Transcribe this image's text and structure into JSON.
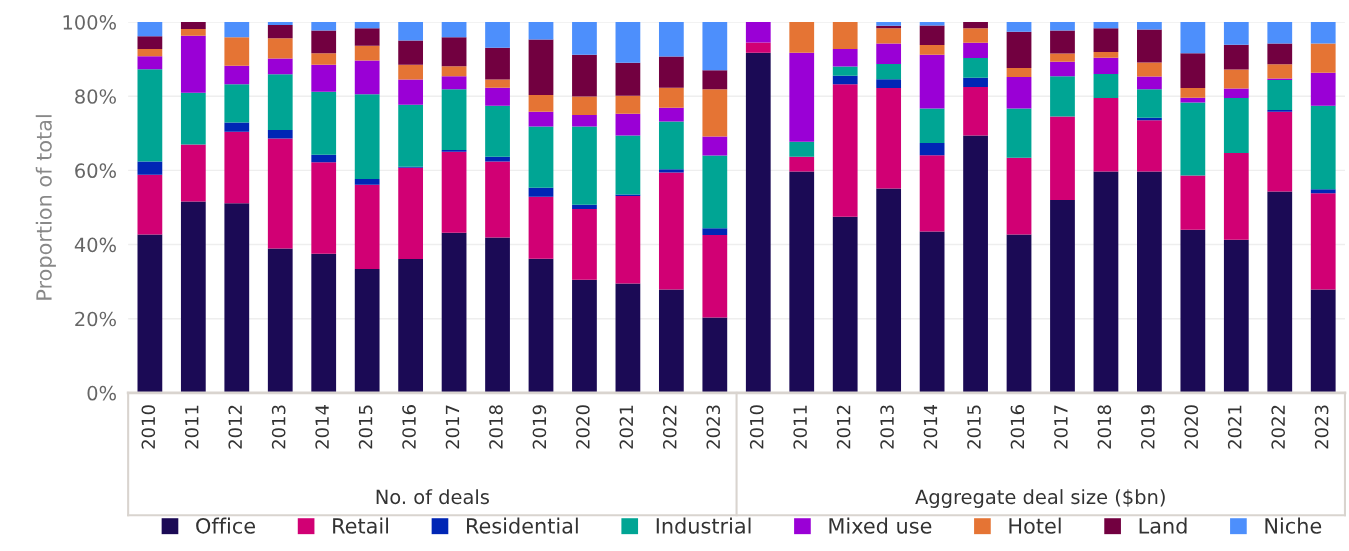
{
  "chart_data": {
    "type": "bar",
    "stacked": true,
    "ylabel": "Proportion of total",
    "categories": [
      "2010",
      "2011",
      "2012",
      "2013",
      "2014",
      "2015",
      "2016",
      "2017",
      "2018",
      "2019",
      "2020",
      "2021",
      "2022",
      "2023",
      "2010",
      "2011",
      "2012",
      "2013",
      "2014",
      "2015",
      "2016",
      "2017",
      "2018",
      "2019",
      "2020",
      "2021",
      "2022",
      "2023"
    ],
    "series": [
      {
        "name": "Office",
        "color": "#1b0a55",
        "values": [
          42.7,
          51.6,
          51.1,
          38.9,
          37.5,
          33.4,
          36.1,
          43.2,
          41.9,
          36.2,
          30.5,
          29.5,
          27.9,
          20.3,
          91.7,
          59.7,
          47.5,
          55.1,
          43.5,
          69.4,
          42.7,
          52.0,
          59.7,
          59.7,
          44.0,
          41.3,
          54.3,
          27.9
        ]
      },
      {
        "name": "Retail",
        "color": "#d10074",
        "values": [
          16.1,
          15.4,
          19.3,
          29.7,
          24.7,
          22.7,
          24.6,
          21.8,
          20.5,
          16.7,
          19.1,
          23.6,
          31.5,
          22.3,
          2.8,
          4.0,
          35.7,
          27.1,
          20.6,
          13.1,
          20.7,
          22.5,
          19.8,
          13.8,
          14.6,
          23.4,
          21.5,
          25.9
        ]
      },
      {
        "name": "Residential",
        "color": "#0026b5",
        "values": [
          3.6,
          0,
          2.5,
          2.3,
          2.0,
          1.6,
          0.3,
          0.5,
          1.3,
          2.4,
          1.1,
          0.4,
          0.9,
          1.8,
          0,
          0,
          2.3,
          2.4,
          3.3,
          2.5,
          0,
          0,
          0,
          0.7,
          0,
          0,
          0.5,
          1.1
        ]
      },
      {
        "name": "Industrial",
        "color": "#00a594",
        "values": [
          24.9,
          13.9,
          10.3,
          15.0,
          17.0,
          22.8,
          16.7,
          16.4,
          13.7,
          16.5,
          21.1,
          15.9,
          12.9,
          19.6,
          0,
          4.0,
          2.5,
          4.1,
          9.3,
          5.3,
          13.3,
          10.9,
          6.5,
          7.7,
          19.7,
          14.8,
          8.1,
          22.5
        ]
      },
      {
        "name": "Mixed use",
        "color": "#9a00d6",
        "values": [
          3.5,
          15.4,
          5.0,
          4.3,
          7.3,
          9.1,
          6.8,
          3.5,
          4.9,
          4.0,
          3.1,
          5.9,
          3.7,
          5.1,
          5.5,
          24.0,
          4.7,
          5.5,
          14.5,
          4.1,
          8.5,
          3.9,
          4.4,
          3.4,
          1.3,
          2.6,
          0.4,
          8.9
        ]
      },
      {
        "name": "Hotel",
        "color": "#e57434",
        "values": [
          1.9,
          1.8,
          7.7,
          5.4,
          3.1,
          4.0,
          4.0,
          2.7,
          2.2,
          4.5,
          5.0,
          4.8,
          5.4,
          12.8,
          0,
          8.3,
          7.3,
          4.1,
          2.6,
          3.9,
          2.4,
          2.2,
          1.5,
          3.8,
          2.6,
          5.1,
          3.8,
          7.9
        ]
      },
      {
        "name": "Land",
        "color": "#720040",
        "values": [
          3.5,
          1.9,
          0,
          3.6,
          6.1,
          4.7,
          6.5,
          7.8,
          8.6,
          15.0,
          11.3,
          8.9,
          8.4,
          5.1,
          0,
          0,
          0,
          0.7,
          5.3,
          1.7,
          9.8,
          6.2,
          6.4,
          8.9,
          9.4,
          6.7,
          5.6,
          0
        ]
      },
      {
        "name": "Niche",
        "color": "#4d8ffc",
        "values": [
          3.8,
          0,
          4.1,
          0.8,
          2.3,
          1.7,
          5.0,
          4.1,
          6.9,
          4.7,
          8.8,
          11.0,
          9.3,
          13.0,
          0,
          0,
          0,
          1.0,
          0.9,
          0,
          2.6,
          2.3,
          1.7,
          2.0,
          8.4,
          6.1,
          5.8,
          5.8
        ]
      }
    ],
    "ylim": [
      0,
      100
    ],
    "yticks": [
      {
        "value": 0,
        "label": "0%"
      },
      {
        "value": 20,
        "label": "20%"
      },
      {
        "value": 40,
        "label": "40%"
      },
      {
        "value": 60,
        "label": "60%"
      },
      {
        "value": 80,
        "label": "80%"
      },
      {
        "value": 100,
        "label": "100%"
      }
    ],
    "annotations": [
      "No. of deals",
      "Aggregate deal size ($bn)"
    ],
    "grid": "y",
    "legend": "bottom"
  }
}
